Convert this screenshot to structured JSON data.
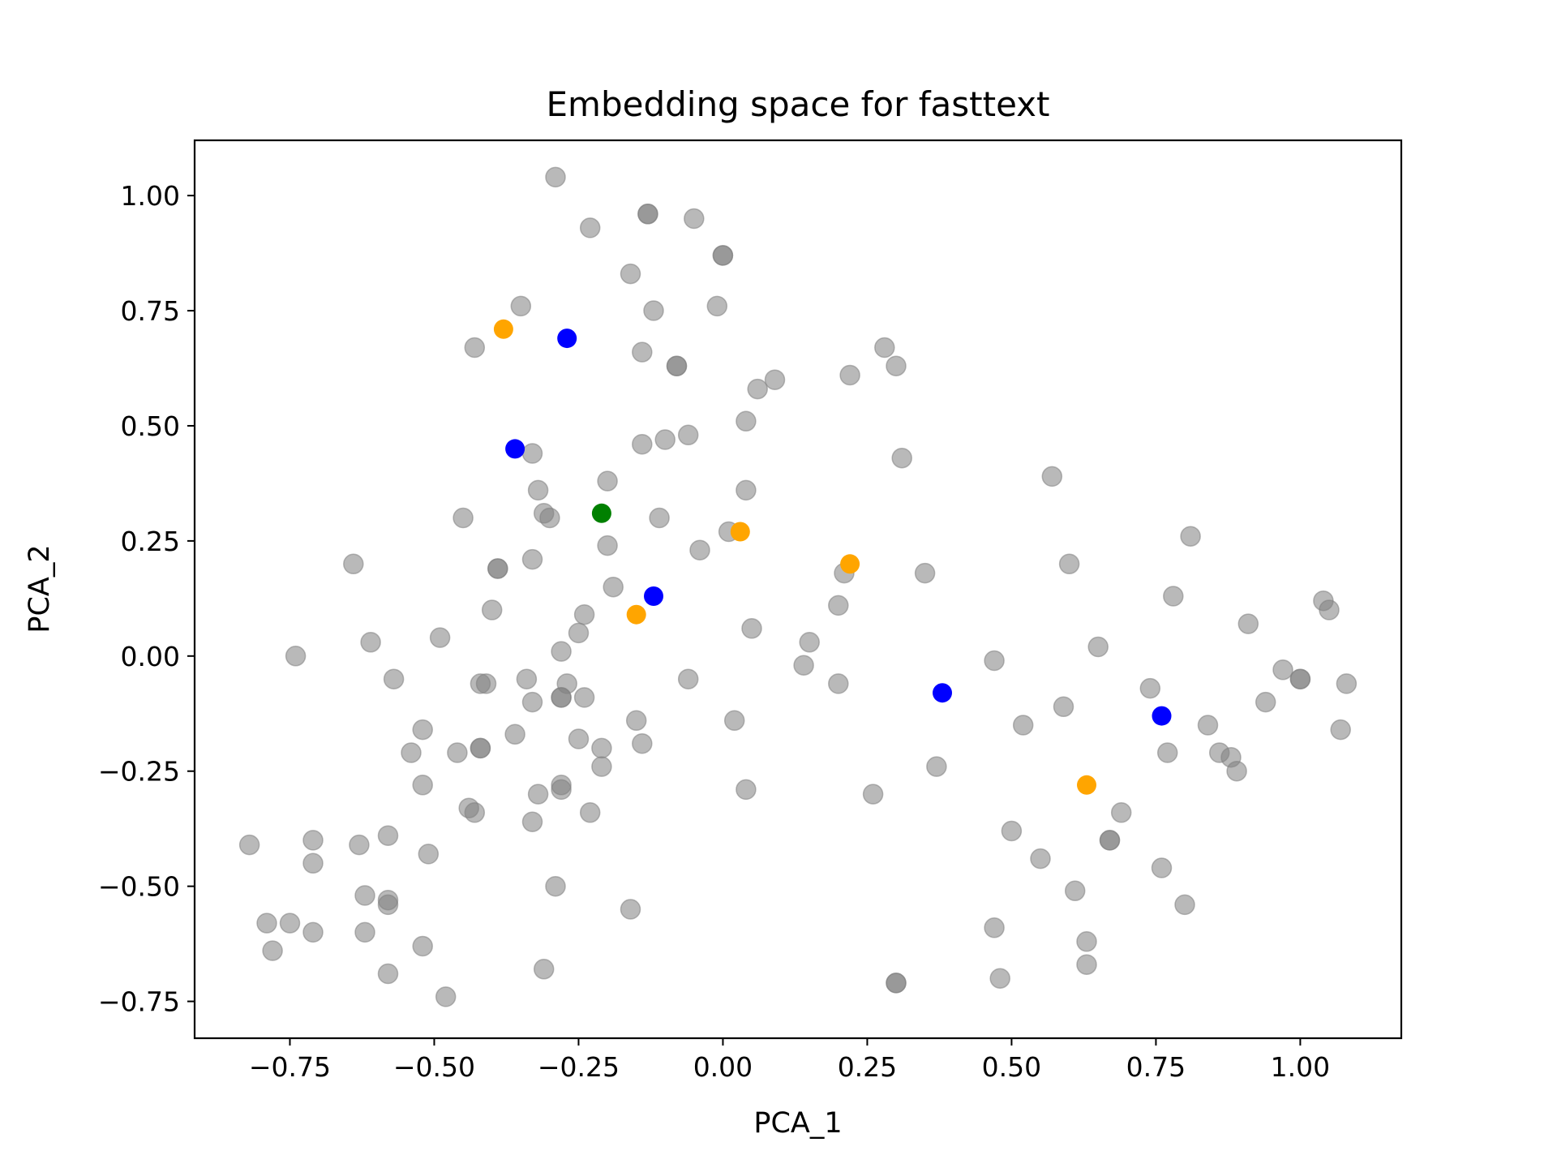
{
  "chart_data": {
    "type": "scatter",
    "title": "Embedding space for fasttext",
    "xlabel": "PCA_1",
    "ylabel": "PCA_2",
    "xlim": [
      -0.915,
      1.175
    ],
    "ylim": [
      -0.83,
      1.12
    ],
    "xticks": [
      -0.75,
      -0.5,
      -0.25,
      0.0,
      0.25,
      0.5,
      0.75,
      1.0
    ],
    "xtick_labels": [
      "−0.75",
      "−0.50",
      "−0.25",
      "0.00",
      "0.25",
      "0.50",
      "0.75",
      "1.00"
    ],
    "yticks": [
      -0.75,
      -0.5,
      -0.25,
      0.0,
      0.25,
      0.5,
      0.75,
      1.0
    ],
    "ytick_labels": [
      "−0.75",
      "−0.50",
      "−0.25",
      "0.00",
      "0.25",
      "0.50",
      "0.75",
      "1.00"
    ],
    "grid": false,
    "legend": "none",
    "series": [
      {
        "color": "#808080",
        "alpha": 0.55,
        "points": [
          [
            -0.29,
            1.04
          ],
          [
            -0.23,
            0.93
          ],
          [
            -0.13,
            0.96
          ],
          [
            -0.13,
            0.96
          ],
          [
            -0.05,
            0.95
          ],
          [
            0.0,
            0.87
          ],
          [
            0.0,
            0.87
          ],
          [
            -0.16,
            0.83
          ],
          [
            -0.35,
            0.76
          ],
          [
            -0.12,
            0.75
          ],
          [
            -0.01,
            0.76
          ],
          [
            -0.43,
            0.67
          ],
          [
            -0.14,
            0.66
          ],
          [
            -0.08,
            0.63
          ],
          [
            -0.08,
            0.63
          ],
          [
            0.28,
            0.67
          ],
          [
            0.22,
            0.61
          ],
          [
            0.3,
            0.63
          ],
          [
            0.06,
            0.58
          ],
          [
            0.09,
            0.6
          ],
          [
            0.04,
            0.51
          ],
          [
            -0.33,
            0.44
          ],
          [
            -0.14,
            0.46
          ],
          [
            -0.1,
            0.47
          ],
          [
            -0.06,
            0.48
          ],
          [
            0.31,
            0.43
          ],
          [
            -0.32,
            0.36
          ],
          [
            -0.2,
            0.38
          ],
          [
            0.04,
            0.36
          ],
          [
            0.57,
            0.39
          ],
          [
            -0.45,
            0.3
          ],
          [
            -0.31,
            0.31
          ],
          [
            -0.3,
            0.3
          ],
          [
            -0.11,
            0.3
          ],
          [
            0.01,
            0.27
          ],
          [
            0.81,
            0.26
          ],
          [
            -0.64,
            0.2
          ],
          [
            -0.33,
            0.21
          ],
          [
            -0.39,
            0.19
          ],
          [
            -0.39,
            0.19
          ],
          [
            -0.2,
            0.24
          ],
          [
            -0.04,
            0.23
          ],
          [
            0.6,
            0.2
          ],
          [
            0.21,
            0.18
          ],
          [
            0.35,
            0.18
          ],
          [
            -0.19,
            0.15
          ],
          [
            -0.4,
            0.1
          ],
          [
            -0.24,
            0.09
          ],
          [
            0.2,
            0.11
          ],
          [
            0.78,
            0.13
          ],
          [
            1.04,
            0.12
          ],
          [
            1.05,
            0.1
          ],
          [
            -0.74,
            0.0
          ],
          [
            -0.61,
            0.03
          ],
          [
            -0.49,
            0.04
          ],
          [
            -0.25,
            0.05
          ],
          [
            -0.28,
            0.01
          ],
          [
            0.05,
            0.06
          ],
          [
            0.15,
            0.03
          ],
          [
            0.14,
            -0.02
          ],
          [
            0.65,
            0.02
          ],
          [
            0.91,
            0.07
          ],
          [
            -0.57,
            -0.05
          ],
          [
            -0.42,
            -0.06
          ],
          [
            -0.41,
            -0.06
          ],
          [
            -0.34,
            -0.05
          ],
          [
            -0.33,
            -0.1
          ],
          [
            -0.27,
            -0.06
          ],
          [
            -0.28,
            -0.09
          ],
          [
            -0.28,
            -0.09
          ],
          [
            -0.24,
            -0.09
          ],
          [
            -0.06,
            -0.05
          ],
          [
            0.2,
            -0.06
          ],
          [
            0.47,
            -0.01
          ],
          [
            0.74,
            -0.07
          ],
          [
            0.97,
            -0.03
          ],
          [
            1.0,
            -0.05
          ],
          [
            1.0,
            -0.05
          ],
          [
            1.08,
            -0.06
          ],
          [
            -0.52,
            -0.16
          ],
          [
            -0.54,
            -0.21
          ],
          [
            -0.46,
            -0.21
          ],
          [
            -0.42,
            -0.2
          ],
          [
            -0.42,
            -0.2
          ],
          [
            -0.36,
            -0.17
          ],
          [
            -0.25,
            -0.18
          ],
          [
            -0.21,
            -0.2
          ],
          [
            -0.15,
            -0.14
          ],
          [
            -0.14,
            -0.19
          ],
          [
            0.02,
            -0.14
          ],
          [
            0.52,
            -0.15
          ],
          [
            0.59,
            -0.11
          ],
          [
            0.84,
            -0.15
          ],
          [
            0.94,
            -0.1
          ],
          [
            1.07,
            -0.16
          ],
          [
            -0.52,
            -0.28
          ],
          [
            -0.44,
            -0.33
          ],
          [
            -0.43,
            -0.34
          ],
          [
            -0.32,
            -0.3
          ],
          [
            -0.28,
            -0.28
          ],
          [
            -0.28,
            -0.29
          ],
          [
            -0.21,
            -0.24
          ],
          [
            -0.23,
            -0.34
          ],
          [
            -0.33,
            -0.36
          ],
          [
            0.04,
            -0.29
          ],
          [
            0.26,
            -0.3
          ],
          [
            0.37,
            -0.24
          ],
          [
            0.77,
            -0.21
          ],
          [
            0.86,
            -0.21
          ],
          [
            0.88,
            -0.22
          ],
          [
            0.89,
            -0.25
          ],
          [
            -0.82,
            -0.41
          ],
          [
            -0.71,
            -0.4
          ],
          [
            -0.71,
            -0.45
          ],
          [
            -0.63,
            -0.41
          ],
          [
            -0.58,
            -0.39
          ],
          [
            -0.51,
            -0.43
          ],
          [
            -0.62,
            -0.52
          ],
          [
            -0.58,
            -0.53
          ],
          [
            -0.58,
            -0.54
          ],
          [
            -0.29,
            -0.5
          ],
          [
            0.5,
            -0.38
          ],
          [
            0.55,
            -0.44
          ],
          [
            0.67,
            -0.4
          ],
          [
            0.67,
            -0.4
          ],
          [
            0.69,
            -0.34
          ],
          [
            0.76,
            -0.46
          ],
          [
            -0.79,
            -0.58
          ],
          [
            -0.75,
            -0.58
          ],
          [
            -0.78,
            -0.64
          ],
          [
            -0.71,
            -0.6
          ],
          [
            -0.62,
            -0.6
          ],
          [
            -0.58,
            -0.69
          ],
          [
            -0.52,
            -0.63
          ],
          [
            -0.48,
            -0.74
          ],
          [
            -0.31,
            -0.68
          ],
          [
            -0.16,
            -0.55
          ],
          [
            0.3,
            -0.71
          ],
          [
            0.3,
            -0.71
          ],
          [
            0.47,
            -0.59
          ],
          [
            0.48,
            -0.7
          ],
          [
            0.61,
            -0.51
          ],
          [
            0.63,
            -0.62
          ],
          [
            0.63,
            -0.67
          ],
          [
            0.8,
            -0.54
          ]
        ]
      },
      {
        "color": "#0000ff",
        "alpha": 1,
        "points": [
          [
            -0.27,
            0.69
          ],
          [
            -0.36,
            0.45
          ],
          [
            -0.12,
            0.13
          ],
          [
            0.38,
            -0.08
          ],
          [
            0.76,
            -0.13
          ]
        ]
      },
      {
        "color": "#ffa500",
        "alpha": 1,
        "points": [
          [
            -0.38,
            0.71
          ],
          [
            0.03,
            0.27
          ],
          [
            0.22,
            0.2
          ],
          [
            -0.15,
            0.09
          ],
          [
            0.63,
            -0.28
          ]
        ]
      },
      {
        "color": "#008000",
        "alpha": 1,
        "points": [
          [
            -0.21,
            0.31
          ]
        ]
      }
    ]
  }
}
